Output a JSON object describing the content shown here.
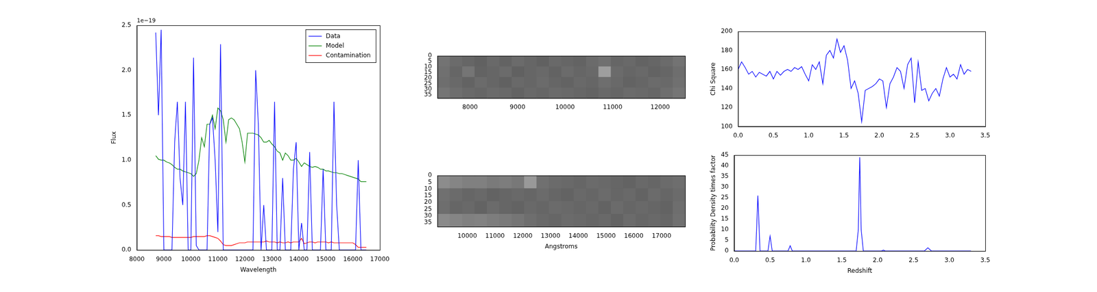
{
  "chart_data": [
    {
      "type": "line",
      "x_label": "Wavelength",
      "y_label": "Flux",
      "annotations": [
        "1e−19"
      ],
      "legend": "upper right",
      "grid": false,
      "xlim": [
        8000,
        17000
      ],
      "xticks": [
        8000,
        9000,
        10000,
        11000,
        12000,
        13000,
        14000,
        15000,
        16000,
        17000
      ],
      "ylim": [
        0,
        2.5
      ],
      "yticks": [
        {
          "value": 0,
          "label": "0.0"
        },
        0.5,
        {
          "value": 1,
          "label": "1.0"
        },
        1.5,
        {
          "value": 2,
          "label": "2.0"
        },
        2.5
      ],
      "x": [
        8700,
        8800,
        8900,
        9000,
        9100,
        9200,
        9300,
        9400,
        9500,
        9600,
        9700,
        9800,
        9900,
        10000,
        10100,
        10200,
        10300,
        10400,
        10500,
        10600,
        10700,
        10800,
        10900,
        11000,
        11100,
        11200,
        11300,
        11400,
        11500,
        11600,
        11700,
        11800,
        11900,
        12000,
        12100,
        12200,
        12300,
        12400,
        12500,
        12600,
        12700,
        12800,
        12900,
        13000,
        13100,
        13200,
        13300,
        13400,
        13500,
        13600,
        13700,
        13800,
        13900,
        14000,
        14100,
        14200,
        14300,
        14400,
        14500,
        14600,
        14700,
        14800,
        14900,
        15000,
        15100,
        15200,
        15300,
        15400,
        15500,
        15600,
        15700,
        15800,
        15900,
        16000,
        16100,
        16200,
        16300,
        16400,
        16500
      ],
      "series": [
        {
          "name": "Data",
          "color": "#0000ff",
          "values": [
            2.42,
            1.5,
            2.45,
            0,
            0,
            0,
            0,
            1.2,
            1.65,
            0.8,
            0.5,
            1.65,
            0,
            0,
            2.14,
            0.05,
            0,
            0,
            0,
            0,
            1.4,
            1.47,
            1.0,
            0.2,
            2.29,
            0,
            0,
            0,
            0,
            0,
            0,
            0,
            0,
            0,
            0,
            0,
            0,
            2.0,
            1.4,
            0,
            0.5,
            0,
            0,
            0,
            1.65,
            0,
            0,
            0.8,
            0,
            0,
            0,
            0.9,
            1.2,
            0,
            0.3,
            0,
            0,
            1.09,
            0,
            0,
            0,
            0,
            0.9,
            0,
            0,
            0,
            1.65,
            0.5,
            0,
            0,
            0,
            0,
            0,
            0,
            0,
            1.0,
            0,
            0,
            0
          ]
        },
        {
          "name": "Model",
          "color": "#008000",
          "values": [
            1.05,
            1.01,
            1.0,
            1.0,
            0.98,
            0.97,
            0.95,
            0.92,
            0.9,
            0.9,
            0.88,
            0.87,
            0.86,
            0.85,
            0.82,
            0.85,
            1.0,
            1.25,
            1.15,
            1.4,
            1.4,
            1.5,
            1.35,
            1.58,
            1.55,
            1.45,
            1.2,
            1.45,
            1.47,
            1.45,
            1.4,
            1.35,
            1.2,
            0.98,
            1.3,
            1.3,
            1.3,
            1.29,
            1.28,
            1.25,
            1.2,
            1.2,
            1.22,
            1.18,
            1.15,
            1.1,
            1.08,
            1.0,
            1.08,
            1.05,
            1.0,
            1.0,
            1.02,
            0.98,
            0.93,
            0.97,
            0.95,
            0.93,
            0.92,
            0.93,
            0.92,
            0.9,
            0.9,
            0.88,
            0.88,
            0.87,
            0.86,
            0.86,
            0.85,
            0.85,
            0.84,
            0.83,
            0.82,
            0.81,
            0.8,
            0.79,
            0.76,
            0.76,
            0.76
          ]
        },
        {
          "name": "Contamination",
          "color": "#ff0000",
          "values": [
            0.16,
            0.16,
            0.15,
            0.15,
            0.15,
            0.15,
            0.14,
            0.14,
            0.14,
            0.14,
            0.14,
            0.14,
            0.14,
            0.14,
            0.15,
            0.15,
            0.15,
            0.15,
            0.15,
            0.16,
            0.16,
            0.15,
            0.14,
            0.13,
            0.1,
            0.06,
            0.05,
            0.05,
            0.05,
            0.06,
            0.07,
            0.08,
            0.08,
            0.08,
            0.09,
            0.09,
            0.09,
            0.09,
            0.09,
            0.09,
            0.09,
            0.1,
            0.09,
            0.09,
            0.09,
            0.08,
            0.09,
            0.08,
            0.08,
            0.09,
            0.08,
            0.09,
            0.09,
            0.09,
            0.13,
            0.07,
            0.08,
            0.09,
            0.09,
            0.08,
            0.09,
            0.09,
            0.09,
            0.09,
            0.08,
            0.09,
            0.08,
            0.08,
            0.08,
            0.08,
            0.08,
            0.08,
            0.08,
            0.08,
            0.06,
            0.03,
            0.03,
            0.03,
            0.03
          ]
        }
      ]
    },
    {
      "type": "heatmap",
      "grid": false,
      "xlim": [
        7314,
        12525
      ],
      "xticks": [
        8000,
        9000,
        10000,
        11000,
        12000
      ],
      "ylim": [
        38,
        0
      ],
      "yticks": [
        0,
        5,
        10,
        15,
        20,
        25,
        30,
        35
      ],
      "zlim": [
        0,
        1
      ],
      "cells": [
        [
          0.45,
          0.42,
          0.4,
          0.38,
          0.41,
          0.39,
          0.42,
          0.4,
          0.38,
          0.41,
          0.4,
          0.39,
          0.42,
          0.44,
          0.4,
          0.41,
          0.39,
          0.4,
          0.42,
          0.45
        ],
        [
          0.44,
          0.4,
          0.46,
          0.39,
          0.4,
          0.42,
          0.38,
          0.4,
          0.41,
          0.39,
          0.42,
          0.4,
          0.41,
          0.62,
          0.42,
          0.4,
          0.41,
          0.39,
          0.4,
          0.43
        ],
        [
          0.43,
          0.41,
          0.39,
          0.42,
          0.4,
          0.38,
          0.41,
          0.4,
          0.42,
          0.4,
          0.39,
          0.41,
          0.4,
          0.43,
          0.41,
          0.39,
          0.4,
          0.42,
          0.41,
          0.44
        ],
        [
          0.46,
          0.43,
          0.41,
          0.4,
          0.42,
          0.41,
          0.39,
          0.41,
          0.4,
          0.42,
          0.41,
          0.4,
          0.39,
          0.41,
          0.4,
          0.42,
          0.41,
          0.4,
          0.43,
          0.46
        ]
      ]
    },
    {
      "type": "heatmap",
      "grid": false,
      "x_label": "Angstroms",
      "xlim": [
        8925,
        17850
      ],
      "xticks": [
        10000,
        11000,
        12000,
        13000,
        14000,
        15000,
        16000,
        17000
      ],
      "ylim": [
        38,
        0
      ],
      "yticks": [
        0,
        5,
        10,
        15,
        20,
        25,
        30,
        35
      ],
      "zlim": [
        0,
        1
      ],
      "cells": [
        [
          0.55,
          0.52,
          0.5,
          0.5,
          0.48,
          0.49,
          0.47,
          0.6,
          0.44,
          0.42,
          0.41,
          0.4,
          0.42,
          0.41,
          0.4,
          0.39,
          0.41,
          0.4,
          0.42,
          0.43
        ],
        [
          0.44,
          0.42,
          0.4,
          0.41,
          0.39,
          0.4,
          0.41,
          0.4,
          0.42,
          0.4,
          0.39,
          0.41,
          0.4,
          0.42,
          0.4,
          0.41,
          0.39,
          0.42,
          0.4,
          0.42
        ],
        [
          0.43,
          0.4,
          0.41,
          0.39,
          0.42,
          0.4,
          0.39,
          0.41,
          0.4,
          0.42,
          0.41,
          0.4,
          0.41,
          0.39,
          0.42,
          0.4,
          0.41,
          0.4,
          0.39,
          0.43
        ],
        [
          0.54,
          0.52,
          0.5,
          0.51,
          0.49,
          0.48,
          0.46,
          0.43,
          0.41,
          0.4,
          0.42,
          0.41,
          0.4,
          0.41,
          0.39,
          0.42,
          0.4,
          0.41,
          0.4,
          0.44
        ]
      ]
    },
    {
      "type": "line",
      "y_label": "Chi Square",
      "grid": false,
      "xlim": [
        0,
        3.5
      ],
      "xticks": [
        {
          "value": 0,
          "label": "0.0"
        },
        0.5,
        {
          "value": 1,
          "label": "1.0"
        },
        1.5,
        {
          "value": 2,
          "label": "2.0"
        },
        2.5,
        {
          "value": 3,
          "label": "3.0"
        },
        3.5
      ],
      "ylim": [
        100,
        200
      ],
      "yticks": [
        100,
        120,
        140,
        160,
        180,
        200
      ],
      "x": [
        0,
        0.05,
        0.1,
        0.15,
        0.2,
        0.25,
        0.3,
        0.35,
        0.4,
        0.45,
        0.5,
        0.55,
        0.6,
        0.65,
        0.7,
        0.75,
        0.8,
        0.85,
        0.9,
        0.95,
        1.0,
        1.05,
        1.1,
        1.15,
        1.2,
        1.25,
        1.3,
        1.35,
        1.4,
        1.45,
        1.5,
        1.55,
        1.6,
        1.65,
        1.7,
        1.75,
        1.8,
        1.85,
        1.9,
        1.95,
        2.0,
        2.05,
        2.1,
        2.15,
        2.2,
        2.25,
        2.3,
        2.35,
        2.4,
        2.45,
        2.5,
        2.55,
        2.6,
        2.65,
        2.7,
        2.75,
        2.8,
        2.85,
        2.9,
        2.95,
        3.0,
        3.05,
        3.1,
        3.15,
        3.2,
        3.25,
        3.3
      ],
      "series": [
        {
          "color": "#0000ff",
          "values": [
            160,
            168,
            162,
            155,
            158,
            152,
            157,
            155,
            153,
            158,
            150,
            158,
            154,
            158,
            160,
            158,
            162,
            160,
            163,
            155,
            148,
            165,
            160,
            168,
            145,
            175,
            180,
            172,
            192,
            178,
            185,
            170,
            140,
            148,
            135,
            105,
            138,
            140,
            142,
            145,
            150,
            148,
            120,
            145,
            152,
            162,
            158,
            140,
            165,
            172,
            125,
            168,
            138,
            140,
            127,
            135,
            140,
            132,
            150,
            162,
            152,
            155,
            150,
            165,
            155,
            160,
            158
          ]
        }
      ]
    },
    {
      "type": "line",
      "x_label": "Redshift",
      "y_label": "Probability Density times factor",
      "grid": false,
      "xlim": [
        0,
        3.5
      ],
      "xticks": [
        {
          "value": 0,
          "label": "0.0"
        },
        0.5,
        {
          "value": 1,
          "label": "1.0"
        },
        1.5,
        {
          "value": 2,
          "label": "2.0"
        },
        2.5,
        {
          "value": 3,
          "label": "3.0"
        },
        3.5
      ],
      "ylim": [
        0,
        45
      ],
      "yticks": [
        0,
        5,
        10,
        15,
        20,
        25,
        30,
        35,
        40,
        45
      ],
      "x": [
        0,
        0.3,
        0.33,
        0.36,
        0.47,
        0.5,
        0.53,
        0.75,
        0.78,
        0.81,
        1.7,
        1.73,
        1.75,
        1.77,
        1.8,
        2.05,
        2.08,
        2.11,
        2.65,
        2.7,
        2.75,
        3.3
      ],
      "series": [
        {
          "color": "#0000ff",
          "values": [
            0,
            0,
            26,
            0,
            0,
            7,
            0,
            0,
            2.5,
            0,
            0,
            10,
            44,
            10,
            0,
            0,
            0.4,
            0,
            0,
            1.5,
            0,
            0
          ]
        }
      ]
    }
  ]
}
